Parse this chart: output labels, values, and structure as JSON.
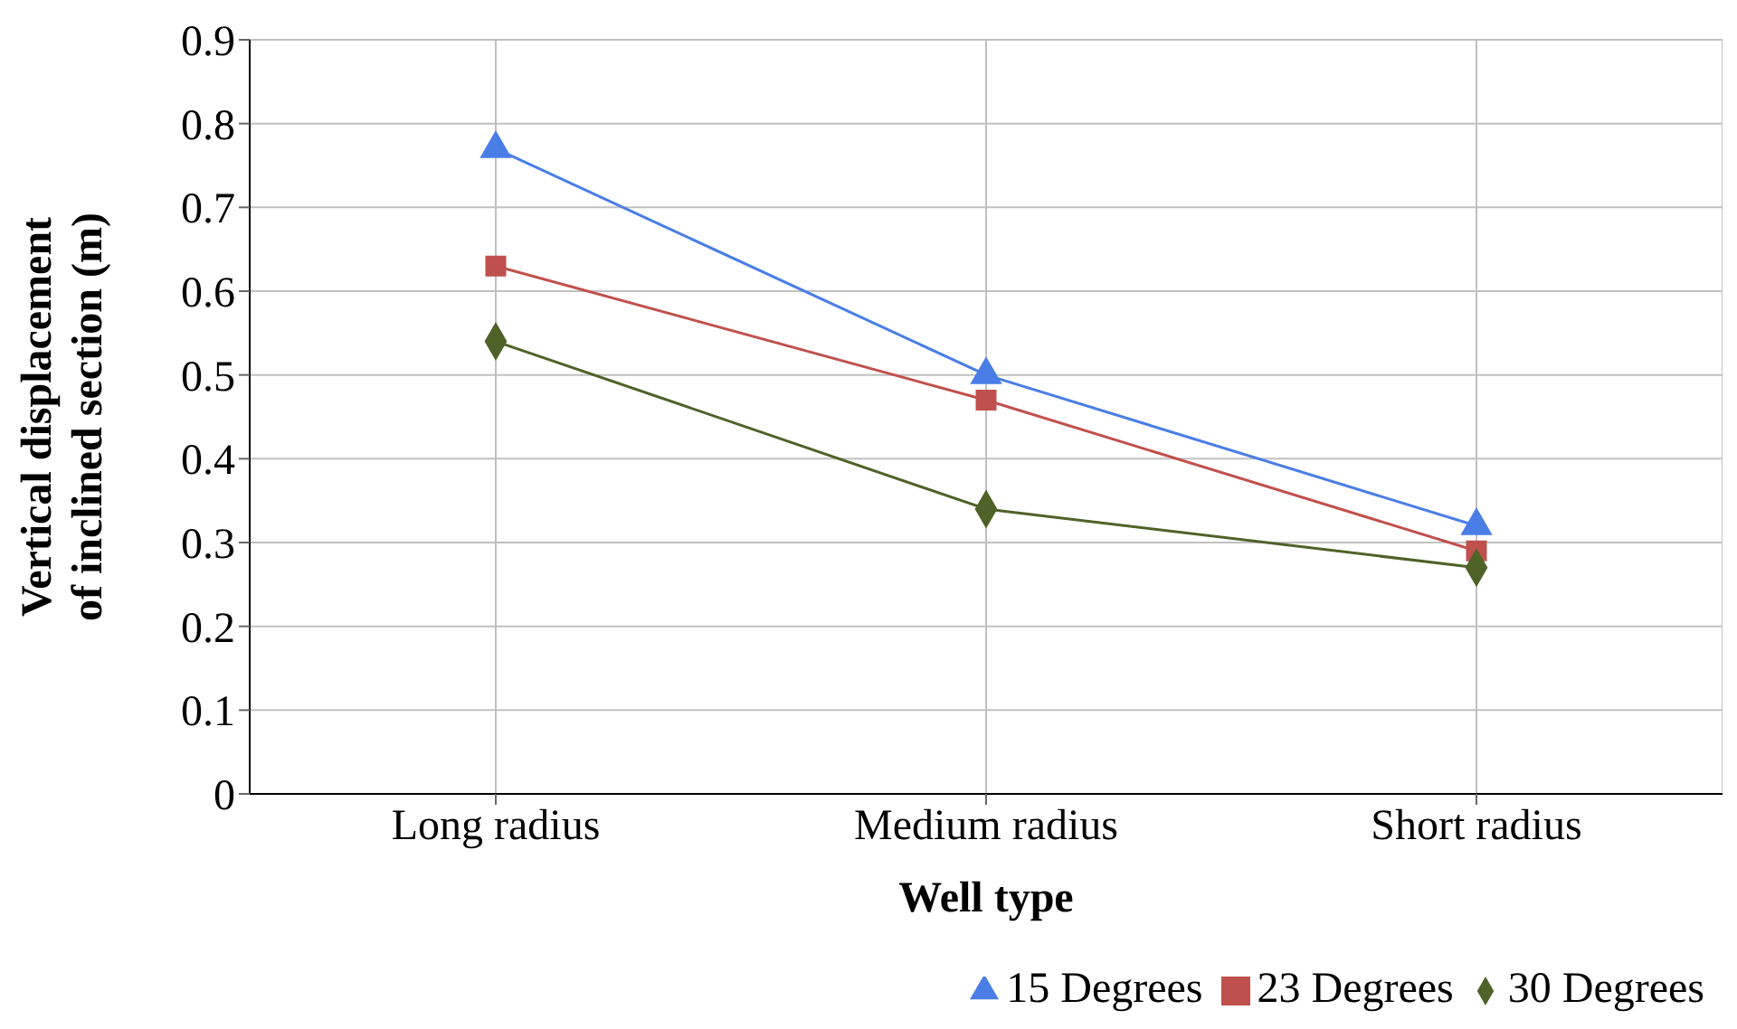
{
  "chart_data": {
    "type": "line",
    "xlabel": "Well type",
    "ylabel": "Vertical displacement of inclined section (m)",
    "categories": [
      "Long radius",
      "Medium radius",
      "Short radius"
    ],
    "series": [
      {
        "name": "15 Degrees",
        "color": "#4a7ee6",
        "values": [
          0.77,
          0.5,
          0.32
        ],
        "marker": "triangle"
      },
      {
        "name": "23 Degrees",
        "color": "#c0504d",
        "values": [
          0.63,
          0.47,
          0.29
        ],
        "marker": "square"
      },
      {
        "name": "30  Degrees",
        "color": "#4f6228",
        "values": [
          0.54,
          0.34,
          0.27
        ],
        "marker": "diamond"
      }
    ],
    "ylim": [
      0,
      0.9
    ],
    "yticks": [
      0,
      0.1,
      0.2,
      0.3,
      0.4,
      0.5,
      0.6,
      0.7,
      0.8,
      0.9
    ],
    "grid": true,
    "legend": "bottom",
    "line_style": "solid"
  }
}
